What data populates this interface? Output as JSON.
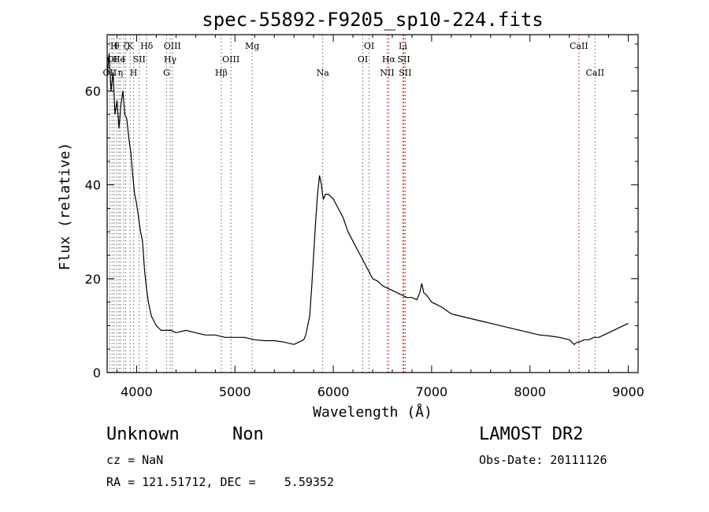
{
  "chart_data": {
    "type": "line",
    "title": "spec-55892-F9205_sp10-224.fits",
    "xlabel": "Wavelength (Å)",
    "ylabel": "Flux (relative)",
    "xlim": [
      3700,
      9100
    ],
    "ylim": [
      0,
      72
    ],
    "xticks": [
      4000,
      5000,
      6000,
      7000,
      8000,
      9000
    ],
    "yticks": [
      0,
      20,
      40,
      60
    ],
    "grid": false,
    "series": [
      {
        "color": "#000000",
        "x": [
          3700,
          3720,
          3740,
          3760,
          3780,
          3800,
          3820,
          3840,
          3860,
          3880,
          3900,
          3920,
          3940,
          3960,
          3980,
          4000,
          4020,
          4040,
          4060,
          4080,
          4100,
          4120,
          4150,
          4200,
          4250,
          4300,
          4350,
          4400,
          4500,
          4600,
          4700,
          4800,
          4900,
          5000,
          5100,
          5200,
          5300,
          5400,
          5500,
          5600,
          5650,
          5700,
          5720,
          5740,
          5760,
          5780,
          5800,
          5820,
          5840,
          5860,
          5870,
          5880,
          5890,
          5900,
          5920,
          5950,
          6000,
          6050,
          6100,
          6150,
          6200,
          6250,
          6300,
          6350,
          6400,
          6450,
          6500,
          6550,
          6600,
          6650,
          6700,
          6750,
          6800,
          6850,
          6880,
          6900,
          6920,
          6950,
          7000,
          7100,
          7200,
          7300,
          7400,
          7500,
          7600,
          7700,
          7800,
          7900,
          8000,
          8100,
          8200,
          8300,
          8400,
          8450,
          8480,
          8500,
          8550,
          8600,
          8650,
          8700,
          8750,
          8800,
          8850,
          8900,
          8950,
          9000
        ],
        "values": [
          63,
          68,
          60,
          64,
          55,
          58,
          52,
          57,
          60,
          55,
          54,
          50,
          47,
          42,
          38,
          36,
          33,
          30,
          28,
          22,
          18,
          15,
          12,
          10,
          9,
          9,
          9,
          8.5,
          9,
          8.5,
          8,
          8,
          7.5,
          7.5,
          7.5,
          7,
          6.8,
          6.8,
          6.5,
          6,
          6.5,
          7,
          8,
          10,
          12,
          18,
          25,
          32,
          38,
          42,
          41,
          40,
          38,
          37,
          38,
          38,
          37,
          35,
          33,
          30,
          28,
          26,
          24,
          22,
          20,
          19.5,
          18.5,
          18,
          17.5,
          17,
          16.5,
          16,
          16,
          15.5,
          17,
          19,
          17,
          16.5,
          15,
          14,
          12.5,
          12,
          11.5,
          11,
          10.5,
          10,
          9.5,
          9,
          8.5,
          8,
          7.8,
          7.5,
          7,
          6,
          6.5,
          6.5,
          7,
          7,
          7.5,
          7.5,
          8,
          8.5,
          9,
          9.5,
          10,
          10.5
        ]
      }
    ],
    "line_markers": [
      {
        "x": 3727,
        "label": "OII",
        "row": 2,
        "color": "#666666"
      },
      {
        "x": 3750,
        "label": "OI",
        "row": 1,
        "color": "#666666"
      },
      {
        "x": 3770,
        "label": "H",
        "row": 0,
        "color": "#666666"
      },
      {
        "x": 3798,
        "label": "θ",
        "row": 0,
        "color": "#666666"
      },
      {
        "x": 3820,
        "label": "He",
        "row": 1,
        "color": "#666666"
      },
      {
        "x": 3835,
        "label": "η",
        "row": 2,
        "color": "#666666"
      },
      {
        "x": 3868,
        "label": "I",
        "row": 1,
        "color": "#666666"
      },
      {
        "x": 3889,
        "label": "ζ",
        "row": 0,
        "color": "#666666"
      },
      {
        "x": 3934,
        "label": "K",
        "row": 0,
        "color": "#666666"
      },
      {
        "x": 3969,
        "label": "H",
        "row": 2,
        "color": "#666666"
      },
      {
        "x": 4026,
        "label": "SII",
        "row": 1,
        "color": "#666666"
      },
      {
        "x": 4102,
        "label": "Hδ",
        "row": 0,
        "color": "#666666"
      },
      {
        "x": 4304,
        "label": "G",
        "row": 2,
        "color": "#666666"
      },
      {
        "x": 4341,
        "label": "Hγ",
        "row": 1,
        "color": "#666666"
      },
      {
        "x": 4363,
        "label": "OIII",
        "row": 0,
        "color": "#666666"
      },
      {
        "x": 4861,
        "label": "Hβ",
        "row": 2,
        "color": "#666666"
      },
      {
        "x": 4959,
        "label": "OIII",
        "row": 1,
        "color": "#666666"
      },
      {
        "x": 5175,
        "label": "Mg",
        "row": 0,
        "color": "#666666"
      },
      {
        "x": 5893,
        "label": "Na",
        "row": 2,
        "color": "#666666"
      },
      {
        "x": 6300,
        "label": "OI",
        "row": 1,
        "color": "#666666"
      },
      {
        "x": 6364,
        "label": "OI",
        "row": 0,
        "color": "#666666"
      },
      {
        "x": 6548,
        "label": "NII",
        "row": 2,
        "color": "#666666"
      },
      {
        "x": 6563,
        "label": "Hα",
        "row": 1,
        "color": "#cc0000"
      },
      {
        "x": 6708,
        "label": "Li",
        "row": 0,
        "color": "#cc0000"
      },
      {
        "x": 6717,
        "label": "SII",
        "row": 1,
        "color": "#cc0000"
      },
      {
        "x": 6731,
        "label": "SII",
        "row": 2,
        "color": "#cc0000"
      },
      {
        "x": 8498,
        "label": "CaII",
        "row": 0,
        "color": "#cc0000"
      },
      {
        "x": 8662,
        "label": "CaII",
        "row": 2,
        "color": "#666666"
      }
    ]
  },
  "info": {
    "class_label": "Unknown",
    "subclass_label": "Non",
    "survey": "LAMOST DR2",
    "cz": "cz = NaN",
    "obs_date": "Obs-Date: 20111126",
    "radec": "RA = 121.51712, DEC =    5.59352"
  }
}
